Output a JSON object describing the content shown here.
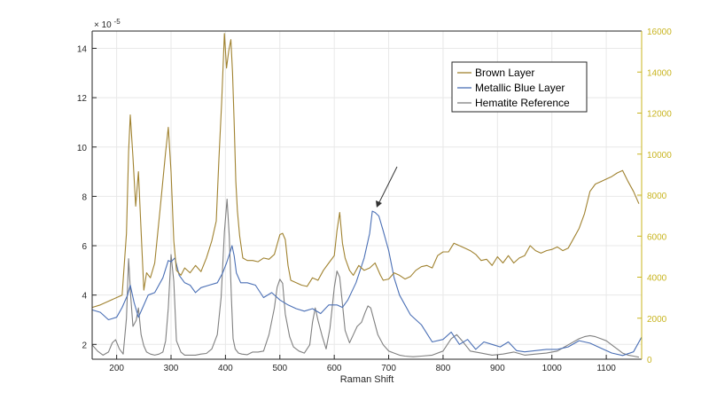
{
  "chart_data": {
    "type": "line",
    "xlabel": "Raman Shift",
    "xlim": [
      155,
      1165
    ],
    "xticks": [
      200,
      300,
      400,
      500,
      600,
      700,
      800,
      900,
      1000,
      1100
    ],
    "y_left": {
      "lim": [
        1.4,
        14.7
      ],
      "ticks": [
        2,
        4,
        6,
        8,
        10,
        12,
        14
      ],
      "exponent_label": "× 10",
      "exponent": "-5"
    },
    "y_right": {
      "lim": [
        0,
        16000
      ],
      "ticks": [
        0,
        2000,
        4000,
        6000,
        8000,
        10000,
        12000,
        14000,
        16000
      ]
    },
    "grid": true,
    "legend_position": "top-right",
    "colors": {
      "brown": "#a0822f",
      "blue": "#4a6fb5",
      "gray": "#808080",
      "right_axis": "#c8b41e"
    },
    "series": [
      {
        "name": "Brown Layer",
        "axis": "left",
        "color": "#a0822f",
        "x": [
          155,
          170,
          185,
          200,
          210,
          218,
          222,
          225,
          230,
          235,
          240,
          245,
          250,
          255,
          262,
          270,
          280,
          290,
          295,
          300,
          305,
          310,
          318,
          325,
          335,
          345,
          355,
          365,
          375,
          383,
          388,
          393,
          398,
          402,
          406,
          410,
          413,
          416,
          419,
          422,
          426,
          432,
          440,
          450,
          460,
          470,
          480,
          490,
          500,
          505,
          510,
          515,
          520,
          530,
          540,
          550,
          560,
          570,
          580,
          590,
          600,
          605,
          610,
          615,
          620,
          628,
          635,
          645,
          655,
          665,
          675,
          685,
          690,
          700,
          710,
          720,
          730,
          740,
          750,
          760,
          770,
          780,
          790,
          800,
          810,
          820,
          830,
          840,
          850,
          860,
          870,
          880,
          890,
          900,
          910,
          920,
          930,
          940,
          950,
          960,
          970,
          980,
          990,
          1000,
          1010,
          1020,
          1030,
          1040,
          1050,
          1060,
          1070,
          1080,
          1090,
          1100,
          1110,
          1120,
          1130,
          1140,
          1150,
          1160
        ],
        "y": [
          3.5,
          3.6,
          3.75,
          3.9,
          4.0,
          6.5,
          9.8,
          11.3,
          9.6,
          7.6,
          9.0,
          6.6,
          4.2,
          4.9,
          4.7,
          5.3,
          7.5,
          9.8,
          10.8,
          9.0,
          6.2,
          5.0,
          4.8,
          5.1,
          4.9,
          5.2,
          4.95,
          5.5,
          6.2,
          7.0,
          9.5,
          11.8,
          14.6,
          13.2,
          13.9,
          14.35,
          13.0,
          11.0,
          8.6,
          7.4,
          6.4,
          5.5,
          5.4,
          5.4,
          5.35,
          5.5,
          5.45,
          5.65,
          6.45,
          6.5,
          6.25,
          5.2,
          4.6,
          4.5,
          4.4,
          4.35,
          4.7,
          4.6,
          5.0,
          5.3,
          5.6,
          6.6,
          7.35,
          6.1,
          5.5,
          5.0,
          4.8,
          5.2,
          5.0,
          5.1,
          5.3,
          4.8,
          4.6,
          4.65,
          4.9,
          4.8,
          4.65,
          4.75,
          5.0,
          5.15,
          5.2,
          5.1,
          5.6,
          5.75,
          5.75,
          6.1,
          6.0,
          5.9,
          5.8,
          5.65,
          5.4,
          5.45,
          5.2,
          5.55,
          5.3,
          5.6,
          5.3,
          5.5,
          5.6,
          6.0,
          5.8,
          5.7,
          5.8,
          5.85,
          5.95,
          5.8,
          5.9,
          6.3,
          6.7,
          7.3,
          8.2,
          8.5,
          8.6,
          8.7,
          8.8,
          8.95,
          9.05,
          8.6,
          8.2,
          7.7
        ]
      },
      {
        "name": "Metallic Blue Layer",
        "axis": "left",
        "color": "#4a6fb5",
        "x": [
          155,
          170,
          185,
          200,
          210,
          220,
          225,
          232,
          240,
          248,
          258,
          270,
          285,
          295,
          300,
          307,
          315,
          325,
          335,
          345,
          355,
          370,
          385,
          395,
          402,
          408,
          412,
          416,
          420,
          428,
          440,
          455,
          470,
          485,
          500,
          515,
          530,
          545,
          560,
          575,
          590,
          605,
          615,
          625,
          640,
          655,
          665,
          670,
          675,
          682,
          690,
          700,
          710,
          720,
          740,
          760,
          780,
          800,
          815,
          830,
          845,
          860,
          875,
          890,
          905,
          920,
          935,
          950,
          970,
          990,
          1010,
          1030,
          1050,
          1070,
          1090,
          1110,
          1130,
          1150,
          1165
        ],
        "y": [
          3.4,
          3.3,
          3.0,
          3.1,
          3.5,
          4.0,
          4.4,
          3.7,
          3.1,
          3.5,
          4.0,
          4.1,
          4.7,
          5.4,
          5.35,
          5.5,
          4.8,
          4.5,
          4.4,
          4.1,
          4.3,
          4.4,
          4.5,
          4.9,
          5.3,
          5.7,
          6.0,
          5.6,
          4.9,
          4.5,
          4.5,
          4.4,
          3.9,
          4.1,
          3.8,
          3.6,
          3.45,
          3.35,
          3.45,
          3.25,
          3.6,
          3.6,
          3.5,
          3.8,
          4.5,
          5.5,
          6.5,
          7.4,
          7.35,
          7.2,
          6.6,
          5.8,
          4.7,
          4.0,
          3.2,
          2.8,
          2.1,
          2.2,
          2.5,
          2.0,
          2.2,
          1.8,
          2.1,
          2.0,
          1.9,
          2.1,
          1.75,
          1.7,
          1.75,
          1.8,
          1.8,
          1.9,
          2.15,
          2.05,
          1.85,
          1.65,
          1.55,
          1.7,
          2.3
        ]
      },
      {
        "name": "Hematite Reference",
        "axis": "right",
        "color": "#808080",
        "x": [
          155,
          165,
          175,
          185,
          192,
          198,
          205,
          212,
          218,
          222,
          226,
          230,
          236,
          240,
          245,
          250,
          255,
          262,
          270,
          278,
          285,
          290,
          295,
          300,
          305,
          310,
          318,
          325,
          335,
          345,
          355,
          365,
          375,
          385,
          392,
          398,
          403,
          407,
          411,
          414,
          418,
          424,
          430,
          440,
          450,
          460,
          470,
          480,
          490,
          495,
          500,
          505,
          510,
          518,
          525,
          535,
          545,
          555,
          560,
          565,
          570,
          578,
          585,
          592,
          600,
          605,
          610,
          615,
          620,
          628,
          635,
          642,
          650,
          657,
          662,
          667,
          672,
          680,
          690,
          700,
          710,
          720,
          730,
          745,
          760,
          780,
          800,
          815,
          825,
          835,
          850,
          870,
          890,
          910,
          930,
          950,
          970,
          990,
          1010,
          1030,
          1050,
          1060,
          1070,
          1080,
          1090,
          1100,
          1110,
          1120,
          1130,
          1140,
          1150,
          1160
        ],
        "y": [
          700,
          400,
          200,
          350,
          800,
          950,
          500,
          250,
          2000,
          4900,
          3000,
          1600,
          1900,
          2500,
          1200,
          650,
          350,
          250,
          200,
          250,
          350,
          900,
          2500,
          5100,
          3800,
          900,
          350,
          200,
          200,
          200,
          250,
          280,
          500,
          1200,
          3000,
          6200,
          7800,
          6000,
          3000,
          1000,
          500,
          300,
          250,
          220,
          350,
          350,
          400,
          1200,
          2500,
          3500,
          3900,
          3700,
          2200,
          1100,
          600,
          400,
          300,
          700,
          1800,
          2500,
          1900,
          1100,
          500,
          1500,
          3500,
          4300,
          4000,
          2700,
          1400,
          800,
          1200,
          1600,
          1800,
          2300,
          2600,
          2500,
          2000,
          1200,
          700,
          400,
          300,
          200,
          150,
          120,
          150,
          200,
          400,
          1000,
          1200,
          900,
          400,
          300,
          200,
          250,
          350,
          200,
          250,
          300,
          400,
          700,
          1000,
          1100,
          1150,
          1100,
          1000,
          900,
          700,
          500,
          300,
          200,
          150,
          100
        ]
      }
    ]
  }
}
